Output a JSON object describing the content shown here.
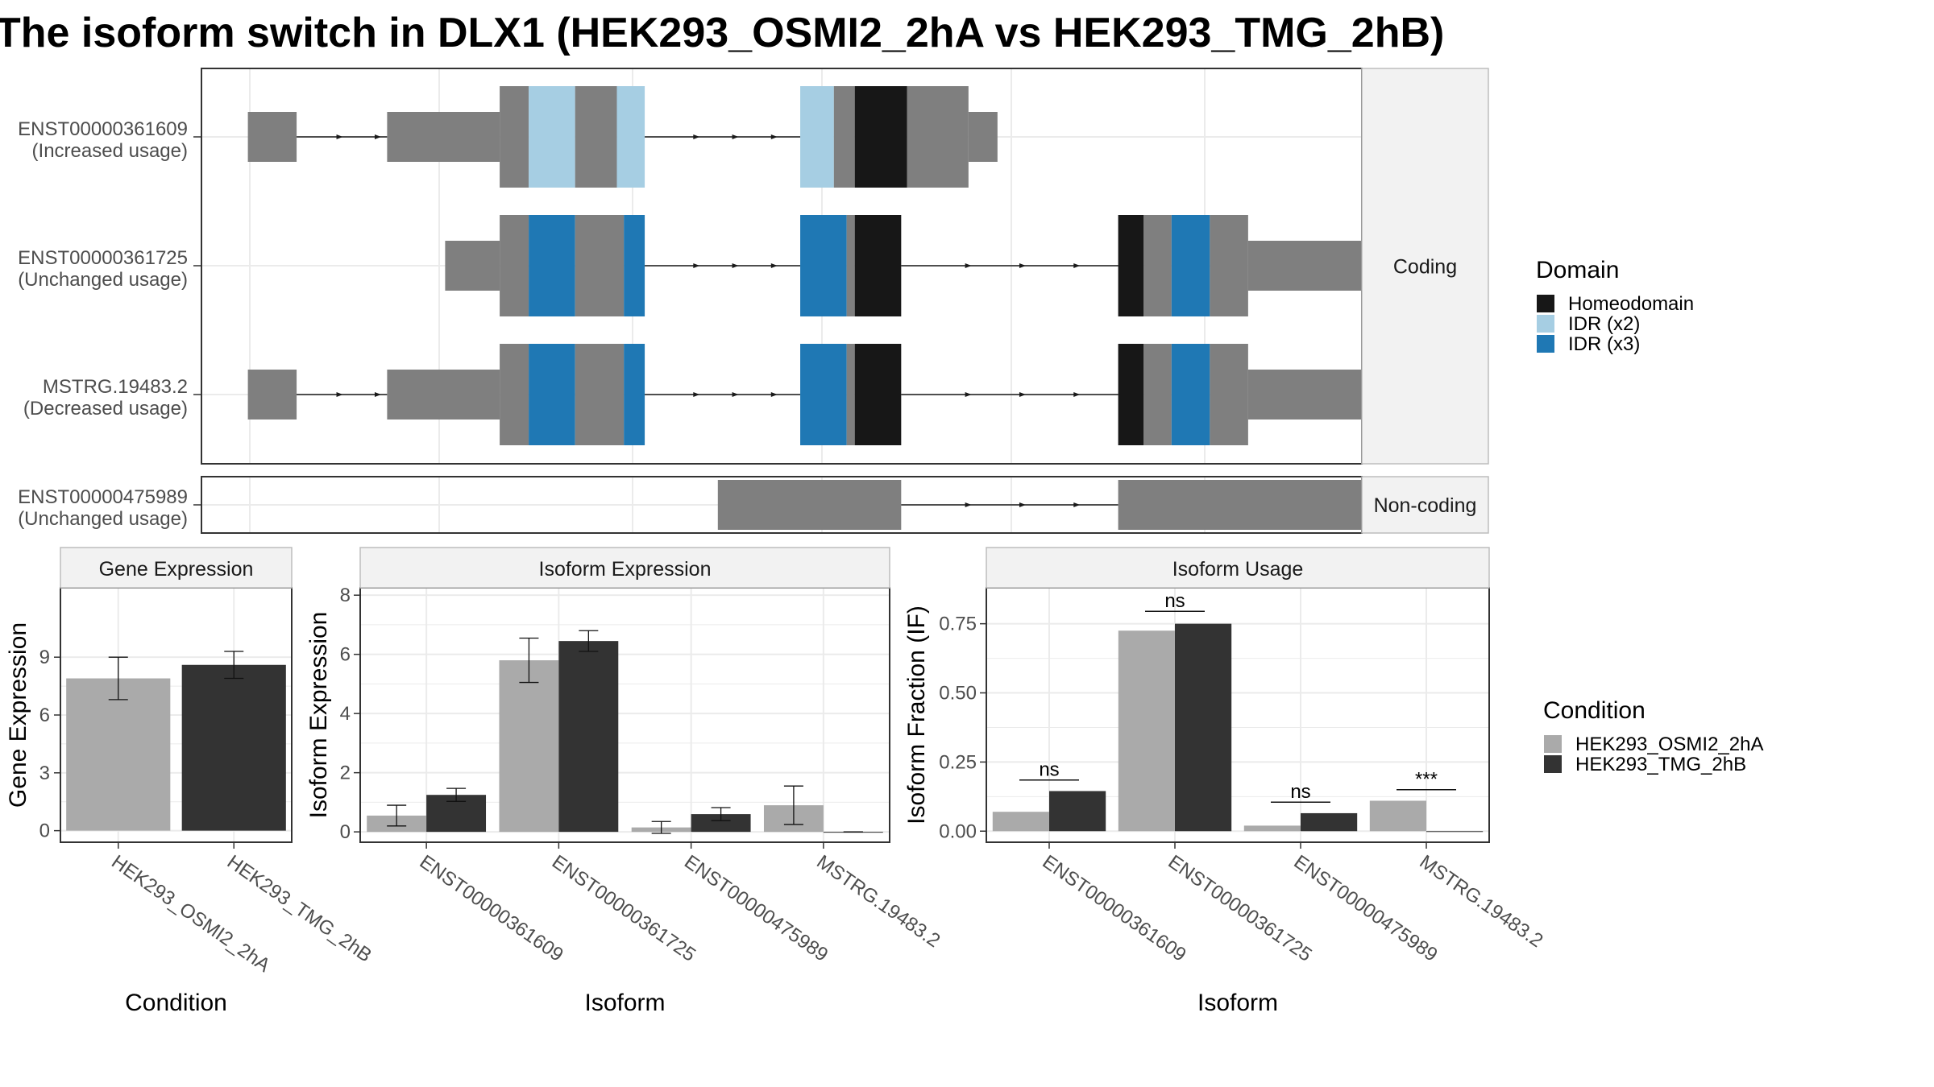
{
  "title": "The isoform switch in DLX1 (HEK293_OSMI2_2hA vs HEK293_TMG_2hB)",
  "colors": {
    "exon": "#7f7f7f",
    "Homeodomain": "#171717",
    "IDR (x2)": "#a6cee3",
    "IDR (x3)": "#1f78b4",
    "HEK293_OSMI2_2hA": "#aaaaaa",
    "HEK293_TMG_2hB": "#333333",
    "grid": "#ebebeb",
    "strip_fill": "#f2f2f2",
    "border": "#333333"
  },
  "legends": {
    "domain": {
      "title": "Domain",
      "items": [
        "Homeodomain",
        "IDR (x2)",
        "IDR (x3)"
      ]
    },
    "condition": {
      "title": "Condition",
      "items": [
        "HEK293_OSMI2_2hA",
        "HEK293_TMG_2hB"
      ]
    }
  },
  "chart_data": [
    {
      "type": "isoform-structure",
      "xlim": [
        0,
        1000
      ],
      "panels": [
        {
          "strip": "Coding",
          "isoforms": [
            {
              "name": "ENST00000361609",
              "label": "(Increased usage)",
              "segments": [
                {
                  "kind": "utr",
                  "start": 40,
                  "end": 82
                },
                {
                  "kind": "intron",
                  "start": 82,
                  "end": 160
                },
                {
                  "kind": "utr",
                  "start": 160,
                  "end": 257
                },
                {
                  "kind": "cds",
                  "start": 257,
                  "end": 282
                },
                {
                  "kind": "IDR (x2)",
                  "start": 282,
                  "end": 322
                },
                {
                  "kind": "cds",
                  "start": 322,
                  "end": 358
                },
                {
                  "kind": "IDR (x2)",
                  "start": 358,
                  "end": 382
                },
                {
                  "kind": "intron",
                  "start": 382,
                  "end": 516
                },
                {
                  "kind": "IDR (x2)",
                  "start": 516,
                  "end": 545
                },
                {
                  "kind": "cds",
                  "start": 545,
                  "end": 563
                },
                {
                  "kind": "Homeodomain",
                  "start": 563,
                  "end": 608
                },
                {
                  "kind": "cds",
                  "start": 608,
                  "end": 661
                },
                {
                  "kind": "utr",
                  "start": 661,
                  "end": 686
                }
              ]
            },
            {
              "name": "ENST00000361725",
              "label": "(Unchanged usage)",
              "segments": [
                {
                  "kind": "utr",
                  "start": 210,
                  "end": 257
                },
                {
                  "kind": "cds",
                  "start": 257,
                  "end": 282
                },
                {
                  "kind": "IDR (x3)",
                  "start": 282,
                  "end": 322
                },
                {
                  "kind": "cds",
                  "start": 322,
                  "end": 364
                },
                {
                  "kind": "IDR (x3)",
                  "start": 364,
                  "end": 382
                },
                {
                  "kind": "intron",
                  "start": 382,
                  "end": 516
                },
                {
                  "kind": "IDR (x3)",
                  "start": 516,
                  "end": 556
                },
                {
                  "kind": "cds",
                  "start": 556,
                  "end": 563
                },
                {
                  "kind": "Homeodomain",
                  "start": 563,
                  "end": 603
                },
                {
                  "kind": "intron",
                  "start": 603,
                  "end": 790
                },
                {
                  "kind": "Homeodomain",
                  "start": 790,
                  "end": 812
                },
                {
                  "kind": "cds",
                  "start": 812,
                  "end": 836
                },
                {
                  "kind": "IDR (x3)",
                  "start": 836,
                  "end": 869
                },
                {
                  "kind": "cds",
                  "start": 869,
                  "end": 902
                },
                {
                  "kind": "utr",
                  "start": 902,
                  "end": 1040
                }
              ]
            },
            {
              "name": "MSTRG.19483.2",
              "label": "(Decreased usage)",
              "segments": [
                {
                  "kind": "utr",
                  "start": 40,
                  "end": 82
                },
                {
                  "kind": "intron",
                  "start": 82,
                  "end": 160
                },
                {
                  "kind": "utr",
                  "start": 160,
                  "end": 257
                },
                {
                  "kind": "cds",
                  "start": 257,
                  "end": 282
                },
                {
                  "kind": "IDR (x3)",
                  "start": 282,
                  "end": 322
                },
                {
                  "kind": "cds",
                  "start": 322,
                  "end": 364
                },
                {
                  "kind": "IDR (x3)",
                  "start": 364,
                  "end": 382
                },
                {
                  "kind": "intron",
                  "start": 382,
                  "end": 516
                },
                {
                  "kind": "IDR (x3)",
                  "start": 516,
                  "end": 556
                },
                {
                  "kind": "cds",
                  "start": 556,
                  "end": 563
                },
                {
                  "kind": "Homeodomain",
                  "start": 563,
                  "end": 603
                },
                {
                  "kind": "intron",
                  "start": 603,
                  "end": 790
                },
                {
                  "kind": "Homeodomain",
                  "start": 790,
                  "end": 812
                },
                {
                  "kind": "cds",
                  "start": 812,
                  "end": 836
                },
                {
                  "kind": "IDR (x3)",
                  "start": 836,
                  "end": 869
                },
                {
                  "kind": "cds",
                  "start": 869,
                  "end": 902
                },
                {
                  "kind": "utr",
                  "start": 902,
                  "end": 1040
                }
              ]
            }
          ]
        },
        {
          "strip": "Non-coding",
          "isoforms": [
            {
              "name": "ENST00000475989",
              "label": "(Unchanged usage)",
              "segments": [
                {
                  "kind": "utr",
                  "start": 445,
                  "end": 603
                },
                {
                  "kind": "intron",
                  "start": 603,
                  "end": 790
                },
                {
                  "kind": "utr",
                  "start": 790,
                  "end": 1040
                }
              ]
            }
          ]
        }
      ]
    },
    {
      "type": "bar",
      "panel": "Gene Expression",
      "xlabel": "Condition",
      "ylabel": "Gene Expression",
      "categories": [
        "HEK293_OSMI2_2hA",
        "HEK293_TMG_2hB"
      ],
      "yticks": [
        0,
        3,
        6,
        9
      ],
      "ylim": [
        -0.6,
        12.6
      ],
      "series": [
        {
          "name": "HEK293_OSMI2_2hA",
          "values": [
            7.9,
            null
          ],
          "err": [
            1.1,
            null
          ]
        },
        {
          "name": "HEK293_TMG_2hB",
          "values": [
            null,
            8.6
          ],
          "err": [
            null,
            0.7
          ]
        }
      ]
    },
    {
      "type": "bar",
      "panel": "Isoform Expression",
      "xlabel": "Isoform",
      "ylabel": "Isoform Expression",
      "categories": [
        "ENST00000361609",
        "ENST00000361725",
        "ENST00000475989",
        "MSTRG.19483.2"
      ],
      "yticks": [
        0,
        2,
        4,
        6,
        8
      ],
      "ylim": [
        -0.35,
        8.25
      ],
      "series": [
        {
          "name": "HEK293_OSMI2_2hA",
          "values": [
            0.55,
            5.8,
            0.15,
            0.9
          ],
          "err": [
            0.35,
            0.75,
            0.2,
            0.65
          ]
        },
        {
          "name": "HEK293_TMG_2hB",
          "values": [
            1.25,
            6.45,
            0.6,
            0.0
          ],
          "err": [
            0.22,
            0.35,
            0.22,
            0.0
          ]
        }
      ]
    },
    {
      "type": "bar",
      "panel": "Isoform Usage",
      "xlabel": "Isoform",
      "ylabel": "Isoform Fraction (IF)",
      "categories": [
        "ENST00000361609",
        "ENST00000361725",
        "ENST00000475989",
        "MSTRG.19483.2"
      ],
      "yticks": [
        "0.00",
        "0.25",
        "0.50",
        "0.75"
      ],
      "ylim": [
        -0.04,
        0.88
      ],
      "series": [
        {
          "name": "HEK293_OSMI2_2hA",
          "values": [
            0.07,
            0.725,
            0.02,
            0.11
          ]
        },
        {
          "name": "HEK293_TMG_2hB",
          "values": [
            0.145,
            0.75,
            0.065,
            0.0
          ]
        }
      ],
      "significance": [
        {
          "category": "ENST00000361609",
          "label": "ns",
          "y": 0.185
        },
        {
          "category": "ENST00000361725",
          "label": "ns",
          "y": 0.795
        },
        {
          "category": "ENST00000475989",
          "label": "ns",
          "y": 0.105
        },
        {
          "category": "MSTRG.19483.2",
          "label": "***",
          "y": 0.15
        }
      ]
    }
  ]
}
